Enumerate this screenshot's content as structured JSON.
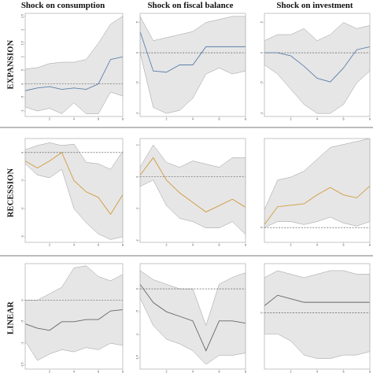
{
  "figure": {
    "col_titles": [
      "Shock on consumption",
      "Shock on fiscal balance",
      "Shock on investment"
    ],
    "row_labels": [
      "EXPANSION",
      "RECESSION",
      "LINEAR"
    ]
  },
  "colors": {
    "expansion": "#5b7fa8",
    "recession": "#d19a3a",
    "linear": "#666666",
    "band": "#e6e6e6"
  },
  "chart_data": [
    {
      "type": "line",
      "row": "EXPANSION",
      "col": "Shock on consumption",
      "x": [
        0,
        1,
        2,
        3,
        4,
        5,
        6,
        7,
        8
      ],
      "ylim": [
        -1.2,
        2.6
      ],
      "xlim": [
        0,
        8
      ],
      "yticks": [
        {
          "v": 2.5,
          "label": "2.5"
        },
        {
          "v": 2,
          "label": "2"
        },
        {
          "v": 1.5,
          "label": "1.5"
        },
        {
          "v": 1,
          "label": "1"
        },
        {
          "v": 0.5,
          "label": ".5"
        },
        {
          "v": 0,
          "label": "0"
        },
        {
          "v": -0.5,
          "label": "-.5"
        },
        {
          "v": -1,
          "label": "-1"
        }
      ],
      "xticks": [
        {
          "v": 2,
          "label": "2"
        },
        {
          "v": 4,
          "label": "4"
        },
        {
          "v": 6,
          "label": "6"
        },
        {
          "v": 8,
          "label": "8"
        }
      ],
      "zero": 0,
      "series": [
        {
          "values": [
            -0.25,
            -0.15,
            -0.1,
            -0.2,
            -0.15,
            -0.2,
            0,
            0.9,
            1
          ]
        }
      ],
      "band_upper": [
        0.55,
        0.6,
        0.75,
        0.8,
        0.8,
        0.9,
        1.5,
        2.2,
        2.5
      ],
      "band_lower": [
        -0.85,
        -1.0,
        -0.9,
        -1.1,
        -0.7,
        -1.1,
        -1.1,
        -0.3,
        -0.45
      ]
    },
    {
      "type": "line",
      "row": "EXPANSION",
      "col": "Shock on fiscal balance",
      "x": [
        0,
        1,
        2,
        3,
        4,
        5,
        6,
        7,
        8
      ],
      "ylim": [
        -1.05,
        0.65
      ],
      "xlim": [
        0,
        8
      ],
      "yticks": [
        {
          "v": 0.5,
          "label": ".5"
        },
        {
          "v": 0,
          "label": "0"
        },
        {
          "v": -0.5,
          "label": "-.5"
        },
        {
          "v": -1,
          "label": "-1"
        }
      ],
      "xticks": [
        {
          "v": 2,
          "label": "2"
        },
        {
          "v": 4,
          "label": "4"
        },
        {
          "v": 6,
          "label": "6"
        },
        {
          "v": 8,
          "label": "8"
        }
      ],
      "zero": 0,
      "series": [
        {
          "values": [
            0.35,
            -0.3,
            -0.32,
            -0.2,
            -0.2,
            0.1,
            0.1,
            0.1,
            0.1
          ]
        }
      ],
      "band_upper": [
        0.6,
        0.2,
        0.25,
        0.3,
        0.35,
        0.5,
        0.55,
        0.6,
        0.6
      ],
      "band_lower": [
        0.0,
        -0.9,
        -1.0,
        -0.95,
        -0.75,
        -0.35,
        -0.25,
        -0.35,
        -0.3
      ]
    },
    {
      "type": "line",
      "row": "EXPANSION",
      "col": "Shock on investment",
      "x": [
        0,
        1,
        2,
        3,
        4,
        5,
        6,
        7,
        8
      ],
      "ylim": [
        -1.05,
        0.65
      ],
      "xlim": [
        0,
        8
      ],
      "yticks": [
        {
          "v": 0.5,
          "label": ".5"
        },
        {
          "v": 0,
          "label": "0"
        },
        {
          "v": -0.5,
          "label": "-.5"
        },
        {
          "v": -1,
          "label": "-1"
        }
      ],
      "xticks": [
        {
          "v": 2,
          "label": "2"
        },
        {
          "v": 4,
          "label": "4"
        },
        {
          "v": 6,
          "label": "6"
        },
        {
          "v": 8,
          "label": "8"
        }
      ],
      "zero": 0,
      "series": [
        {
          "values": [
            0.0,
            0.0,
            -0.05,
            -0.22,
            -0.42,
            -0.48,
            -0.25,
            0.05,
            0.1
          ]
        }
      ],
      "band_upper": [
        0.2,
        0.3,
        0.3,
        0.4,
        0.2,
        0.3,
        0.5,
        0.4,
        0.45
      ],
      "band_lower": [
        -0.2,
        -0.35,
        -0.6,
        -0.85,
        -1.0,
        -1.0,
        -0.85,
        -0.5,
        -0.3
      ]
    },
    {
      "type": "line",
      "row": "RECESSION",
      "col": "Shock on consumption",
      "x": [
        0,
        1,
        2,
        3,
        4,
        5,
        6,
        7,
        8
      ],
      "ylim": [
        -3.2,
        0.5
      ],
      "xlim": [
        0,
        8
      ],
      "yticks": [
        {
          "v": 0,
          "label": "0"
        },
        {
          "v": -1,
          "label": "-1"
        },
        {
          "v": -2,
          "label": "-2"
        },
        {
          "v": -3,
          "label": "-3"
        }
      ],
      "xticks": [
        {
          "v": 2,
          "label": "2"
        },
        {
          "v": 4,
          "label": "4"
        },
        {
          "v": 6,
          "label": "6"
        },
        {
          "v": 8,
          "label": "8"
        }
      ],
      "zero": 0,
      "series": [
        {
          "values": [
            -0.3,
            -0.55,
            -0.3,
            0.0,
            -1.0,
            -1.4,
            -1.6,
            -2.2,
            -1.5
          ]
        }
      ],
      "band_upper": [
        0.1,
        0.25,
        0.35,
        0.25,
        0.3,
        -0.35,
        -0.4,
        -0.6,
        0.05
      ],
      "band_lower": [
        -0.4,
        -0.8,
        -0.9,
        -0.6,
        -2.0,
        -2.5,
        -2.9,
        -3.1,
        -3.0
      ]
    },
    {
      "type": "line",
      "row": "RECESSION",
      "col": "Shock on fiscal balance",
      "x": [
        0,
        1,
        2,
        3,
        4,
        5,
        6,
        7,
        8
      ],
      "ylim": [
        -2.05,
        1.2
      ],
      "xlim": [
        0,
        8
      ],
      "yticks": [
        {
          "v": 1,
          "label": "1"
        },
        {
          "v": 0,
          "label": "0"
        },
        {
          "v": -1,
          "label": "-1"
        },
        {
          "v": -2,
          "label": "-2"
        }
      ],
      "xticks": [
        {
          "v": 2,
          "label": "2"
        },
        {
          "v": 4,
          "label": "4"
        },
        {
          "v": 6,
          "label": "6"
        },
        {
          "v": 8,
          "label": "8"
        }
      ],
      "zero": 0,
      "series": [
        {
          "values": [
            0.05,
            0.6,
            -0.1,
            -0.5,
            -0.8,
            -1.1,
            -0.9,
            -0.7,
            -0.95
          ]
        }
      ],
      "band_upper": [
        0.3,
        1.0,
        0.45,
        0.3,
        0.5,
        0.4,
        0.3,
        0.6,
        0.6
      ],
      "band_lower": [
        -0.3,
        -0.1,
        -0.9,
        -1.3,
        -1.4,
        -1.6,
        -1.6,
        -1.4,
        -1.8
      ]
    },
    {
      "type": "line",
      "row": "RECESSION",
      "col": "Shock on investment",
      "x": [
        0,
        1,
        2,
        3,
        4,
        5,
        6,
        7,
        8
      ],
      "ylim": [
        -0.5,
        3.0
      ],
      "xlim": [
        0,
        8
      ],
      "yticks": [
        {
          "v": 0,
          "label": "0"
        }
      ],
      "xticks": [
        {
          "v": 2,
          "label": "2"
        },
        {
          "v": 4,
          "label": "4"
        },
        {
          "v": 6,
          "label": "6"
        },
        {
          "v": 8,
          "label": "8"
        }
      ],
      "zero": 0,
      "series": [
        {
          "values": [
            0.1,
            0.7,
            0.75,
            0.8,
            1.1,
            1.35,
            1.1,
            1.0,
            1.4
          ]
        }
      ],
      "band_upper": [
        0.6,
        1.6,
        1.7,
        1.9,
        2.3,
        2.7,
        2.8,
        2.9,
        3.0
      ],
      "band_lower": [
        0.0,
        0.2,
        0.2,
        0.1,
        0.2,
        0.35,
        0.15,
        0.05,
        0.2
      ]
    },
    {
      "type": "line",
      "row": "LINEAR",
      "col": "Shock on consumption",
      "x": [
        0,
        1,
        2,
        3,
        4,
        5,
        6,
        7,
        8
      ],
      "ylim": [
        -1.6,
        0.85
      ],
      "xlim": [
        0,
        8
      ],
      "yticks": [
        {
          "v": 0,
          "label": "0"
        },
        {
          "v": -0.5,
          "label": "-.5"
        },
        {
          "v": -1,
          "label": "-1"
        },
        {
          "v": -1.5,
          "label": "-1.5"
        }
      ],
      "xticks": [
        {
          "v": 2,
          "label": "2"
        },
        {
          "v": 4,
          "label": "4"
        },
        {
          "v": 6,
          "label": "6"
        },
        {
          "v": 8,
          "label": "8"
        }
      ],
      "zero": 0,
      "series": [
        {
          "values": [
            -0.55,
            -0.65,
            -0.7,
            -0.5,
            -0.5,
            -0.45,
            -0.45,
            -0.25,
            -0.22
          ]
        }
      ],
      "band_upper": [
        0.0,
        0.0,
        0.15,
        0.3,
        0.75,
        0.8,
        0.55,
        0.45,
        0.6
      ],
      "band_lower": [
        -0.95,
        -1.4,
        -1.25,
        -1.15,
        -1.2,
        -1.1,
        -1.15,
        -1.0,
        -1.05
      ]
    },
    {
      "type": "line",
      "row": "LINEAR",
      "col": "Shock on fiscal balance",
      "x": [
        0,
        1,
        2,
        3,
        4,
        5,
        6,
        7,
        8
      ],
      "ylim": [
        -1.75,
        0.55
      ],
      "xlim": [
        0,
        8
      ],
      "yticks": [
        {
          "v": 0,
          "label": "0"
        },
        {
          "v": -0.5,
          "label": "-.5"
        },
        {
          "v": -1,
          "label": "-1"
        },
        {
          "v": -1.5,
          "label": "-1.5"
        }
      ],
      "xticks": [
        {
          "v": 2,
          "label": "2"
        },
        {
          "v": 4,
          "label": "4"
        },
        {
          "v": 6,
          "label": "6"
        },
        {
          "v": 8,
          "label": "8"
        }
      ],
      "zero": 0,
      "series": [
        {
          "values": [
            0.1,
            -0.3,
            -0.5,
            -0.6,
            -0.7,
            -1.35,
            -0.7,
            -0.7,
            -0.75
          ]
        }
      ],
      "band_upper": [
        0.4,
        0.2,
        0.1,
        0.0,
        0.0,
        -0.8,
        0.1,
        0.25,
        0.35
      ],
      "band_lower": [
        -0.2,
        -0.8,
        -1.1,
        -1.2,
        -1.35,
        -1.65,
        -1.45,
        -1.45,
        -1.4
      ]
    },
    {
      "type": "line",
      "row": "LINEAR",
      "col": "Shock on investment",
      "x": [
        0,
        1,
        2,
        3,
        4,
        5,
        6,
        7,
        8
      ],
      "ylim": [
        -0.8,
        0.7
      ],
      "xlim": [
        0,
        8
      ],
      "yticks": [
        {
          "v": 0,
          "label": "0"
        }
      ],
      "xticks": [
        {
          "v": 2,
          "label": "2"
        },
        {
          "v": 4,
          "label": "4"
        },
        {
          "v": 6,
          "label": "6"
        },
        {
          "v": 8,
          "label": "8"
        }
      ],
      "zero": 0,
      "series": [
        {
          "values": [
            0.1,
            0.25,
            0.2,
            0.15,
            0.15,
            0.15,
            0.15,
            0.15,
            0.15
          ]
        }
      ],
      "band_upper": [
        0.5,
        0.6,
        0.55,
        0.5,
        0.55,
        0.6,
        0.6,
        0.55,
        0.55
      ],
      "band_lower": [
        -0.3,
        -0.3,
        -0.4,
        -0.6,
        -0.65,
        -0.65,
        -0.6,
        -0.6,
        -0.55
      ]
    }
  ]
}
